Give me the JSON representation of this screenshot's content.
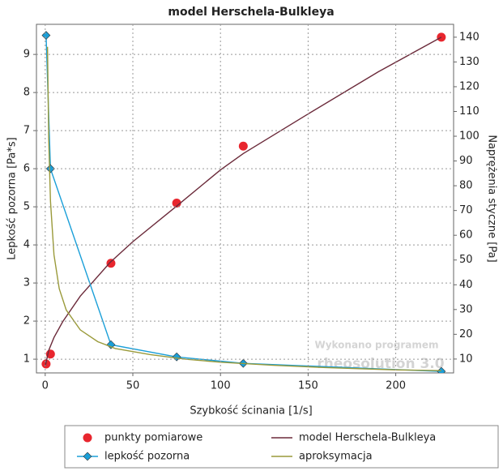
{
  "chart_data": {
    "type": "line",
    "title": "model Herschela-Bulkleya",
    "x_label": "Szybkość ścinania [1/s]",
    "y_label": "Lepkość pozorna [Pa*s]",
    "y2_label": "Naprężenia styczne [Pa]",
    "watermark": [
      "Wykonano programem",
      "rheosolution 3.0"
    ],
    "xlim": [
      -5,
      233
    ],
    "xticks": [
      0,
      50,
      100,
      150,
      200
    ],
    "ylim": [
      0.64,
      9.79
    ],
    "yticks": [
      1,
      2,
      3,
      4,
      5,
      6,
      7,
      8,
      9
    ],
    "y2lim": [
      4.4,
      145.2
    ],
    "y2ticks": [
      10,
      20,
      30,
      40,
      50,
      60,
      70,
      80,
      90,
      100,
      110,
      120,
      130,
      140
    ],
    "grid": true,
    "legend": "bottom",
    "series": [
      {
        "name": "punkty pomiarowe",
        "color": "#e8262e",
        "mode": "markers",
        "marker": "circle",
        "axis": "y2",
        "x": [
          0.5,
          3,
          37.5,
          75,
          113,
          226
        ],
        "values": [
          8,
          12,
          48.7,
          73,
          96,
          140
        ]
      },
      {
        "name": "model Herschela-Bulkleya",
        "color": "#6b2a3a",
        "mode": "lines",
        "axis": "y2",
        "x": [
          0,
          2,
          5,
          10,
          20,
          37,
          50,
          75,
          100,
          113,
          150,
          190,
          226
        ],
        "values": [
          7,
          13.5,
          18.7,
          25.1,
          35.4,
          49,
          57.4,
          71.8,
          86.4,
          93,
          109,
          126,
          140
        ]
      },
      {
        "name": "lepkość pozorna",
        "color": "#1a9fd8",
        "mode": "lines+markers",
        "marker": "diamond",
        "axis": "y",
        "x": [
          0.5,
          3,
          37.5,
          75,
          113,
          226
        ],
        "values": [
          9.5,
          6.0,
          1.38,
          1.06,
          0.89,
          0.68
        ]
      },
      {
        "name": "aproksymacja",
        "color": "#9a9a3a",
        "mode": "lines",
        "axis": "y",
        "x": [
          1.3,
          2,
          3,
          5,
          8,
          12,
          20,
          30,
          40,
          60,
          80,
          100,
          130,
          160,
          200,
          226
        ],
        "values": [
          9.2,
          6.77,
          5.15,
          3.74,
          2.85,
          2.29,
          1.77,
          1.46,
          1.28,
          1.12,
          1.0,
          0.92,
          0.84,
          0.78,
          0.72,
          0.7
        ]
      }
    ]
  }
}
